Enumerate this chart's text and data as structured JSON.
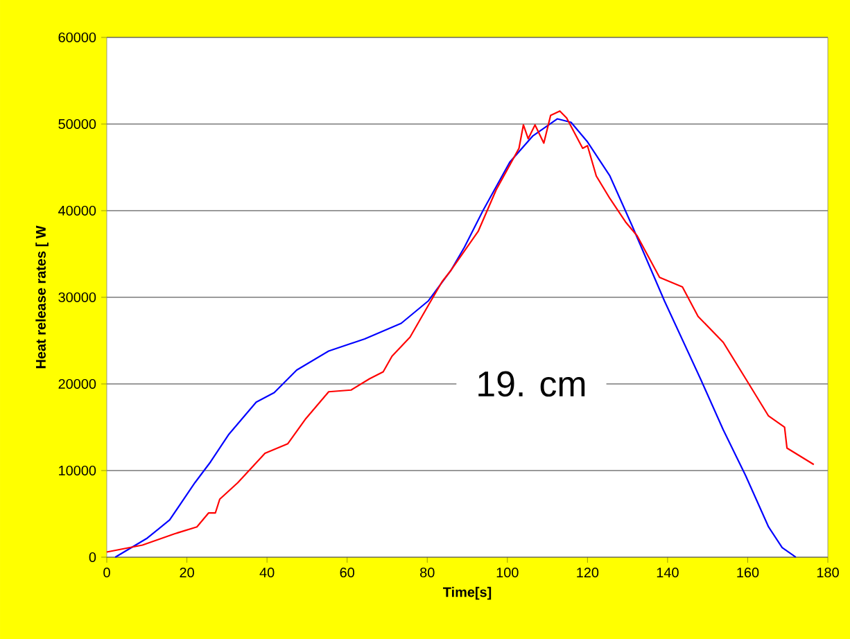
{
  "chart_data": {
    "type": "line",
    "xlabel": "Time[s]",
    "ylabel": "Heat release rates [ W",
    "xlim": [
      0,
      180
    ],
    "ylim": [
      0,
      60000
    ],
    "xticks": [
      0,
      20,
      40,
      60,
      80,
      100,
      120,
      140,
      160,
      180
    ],
    "yticks": [
      0,
      10000,
      20000,
      30000,
      40000,
      50000,
      60000
    ],
    "grid": "y",
    "marker": "none",
    "line_style": "solid",
    "annotations": [
      "19. cm"
    ],
    "series": [
      {
        "color": "#0000ff",
        "x": [
          2.1,
          10.1,
          15.7,
          22,
          25.9,
          30.5,
          37.3,
          41.8,
          47.4,
          55.4,
          64.4,
          73.5,
          80.3,
          85.9,
          89.3,
          93.9,
          100.6,
          106.3,
          112.5,
          115.9,
          119.9,
          125.6,
          131.2,
          139.2,
          148.2,
          153.9,
          159.5,
          165.2,
          168.6,
          172
        ],
        "values": [
          0,
          2200,
          4300,
          8600,
          11000,
          14200,
          17900,
          19000,
          21600,
          23800,
          25200,
          27000,
          29600,
          33100,
          35800,
          40000,
          45600,
          48600,
          50600,
          50200,
          48000,
          44000,
          38200,
          29600,
          20600,
          14700,
          9400,
          3500,
          1100,
          0
        ]
      },
      {
        "color": "#ff0000",
        "x": [
          0,
          8.9,
          16.9,
          22.5,
          25.4,
          27.1,
          28.2,
          32.7,
          39.5,
          45.2,
          49.7,
          55.4,
          61,
          65.6,
          69,
          71.2,
          75.7,
          80.3,
          83.7,
          85.9,
          92.7,
          97.2,
          102.9,
          104,
          105.2,
          106.9,
          109.1,
          110.8,
          113.1,
          114.8,
          118.8,
          120,
          122.2,
          125.6,
          129.5,
          132.4,
          138,
          143.7,
          147.6,
          153.9,
          159.5,
          165.2,
          169.2,
          169.8,
          176.5
        ],
        "values": [
          600,
          1400,
          2700,
          3500,
          5100,
          5100,
          6700,
          8600,
          12000,
          13100,
          16000,
          19100,
          19300,
          20600,
          21400,
          23200,
          25400,
          29100,
          31800,
          33100,
          37600,
          42400,
          47200,
          49900,
          48300,
          49900,
          47800,
          51000,
          51500,
          50700,
          47200,
          47500,
          44000,
          41400,
          38700,
          37100,
          32300,
          31200,
          27800,
          24800,
          20600,
          16300,
          15000,
          12600,
          10700
        ]
      }
    ]
  }
}
